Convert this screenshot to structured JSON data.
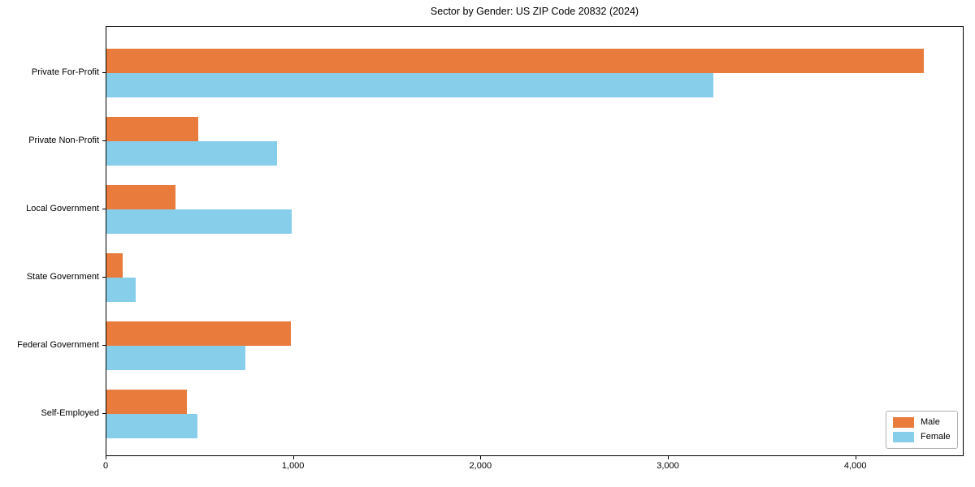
{
  "title": "Sector by Gender: US ZIP Code 20832 (2024)",
  "chart_data": {
    "type": "bar",
    "orientation": "horizontal",
    "title": "Sector by Gender: US ZIP Code 20832 (2024)",
    "xlabel": "",
    "ylabel": "",
    "categories": [
      "Private For-Profit",
      "Private Non-Profit",
      "Local Government",
      "State Government",
      "Federal Government",
      "Self-Employed"
    ],
    "series": [
      {
        "name": "Male",
        "color": "#e97c3d",
        "values": [
          4360,
          490,
          370,
          85,
          985,
          430
        ]
      },
      {
        "name": "Female",
        "color": "#87ceea",
        "values": [
          3240,
          910,
          990,
          155,
          740,
          485
        ]
      }
    ],
    "xlim": [
      0,
      4578
    ],
    "x_ticks": [
      0,
      1000,
      2000,
      3000,
      4000
    ],
    "x_tick_labels": [
      "0",
      "1,000",
      "2,000",
      "3,000",
      "4,000"
    ],
    "grid": false,
    "legend_position": "lower right"
  },
  "legend": {
    "entries": [
      {
        "label": "Male",
        "color": "#e97c3d"
      },
      {
        "label": "Female",
        "color": "#87ceea"
      }
    ]
  }
}
